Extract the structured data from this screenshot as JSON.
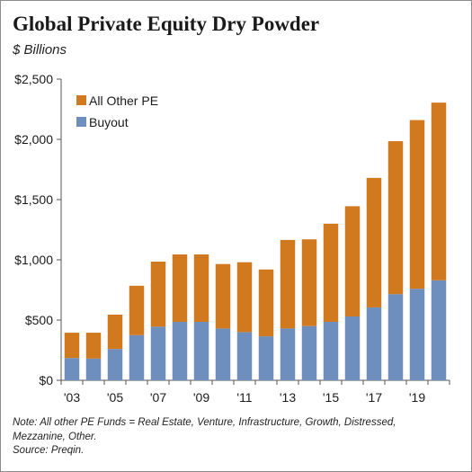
{
  "title": "Global Private Equity Dry Powder",
  "subtitle": "$ Billions",
  "note_lines": [
    "Note: All other PE Funds = Real Estate, Venture, Infrastructure, Growth, Distressed,",
    "Mezzanine, Other.",
    "Source: Preqin."
  ],
  "colors": {
    "buyout": "#6e8fbe",
    "other": "#d0791f",
    "axis": "#555555",
    "frame": "#8c8c8c"
  },
  "chart_data": {
    "type": "bar",
    "stacked": true,
    "categories": [
      "2003",
      "2004",
      "2005",
      "2006",
      "2007",
      "2008",
      "2009",
      "2010",
      "2011",
      "2012",
      "2013",
      "2014",
      "2015",
      "2016",
      "2017",
      "2018",
      "2019",
      "2020"
    ],
    "x_tick_labels": [
      "'03",
      "'05",
      "'07",
      "'09",
      "'11",
      "'13",
      "'15",
      "'17",
      "'19"
    ],
    "series": [
      {
        "name": "Buyout",
        "values": [
          185,
          180,
          260,
          375,
          445,
          485,
          485,
          430,
          400,
          365,
          430,
          450,
          485,
          530,
          605,
          715,
          760,
          830
        ]
      },
      {
        "name": "All Other PE",
        "values": [
          210,
          215,
          285,
          410,
          540,
          560,
          560,
          535,
          580,
          555,
          735,
          720,
          815,
          915,
          1075,
          1270,
          1400,
          1475
        ]
      }
    ],
    "y_tick_labels": [
      "$0",
      "$500",
      "$1,000",
      "$1,500",
      "$2,000",
      "$2,500"
    ],
    "ylim": [
      0,
      2500
    ],
    "legend": [
      "All Other PE",
      "Buyout"
    ],
    "legend_position": "top-left",
    "grid": false
  }
}
